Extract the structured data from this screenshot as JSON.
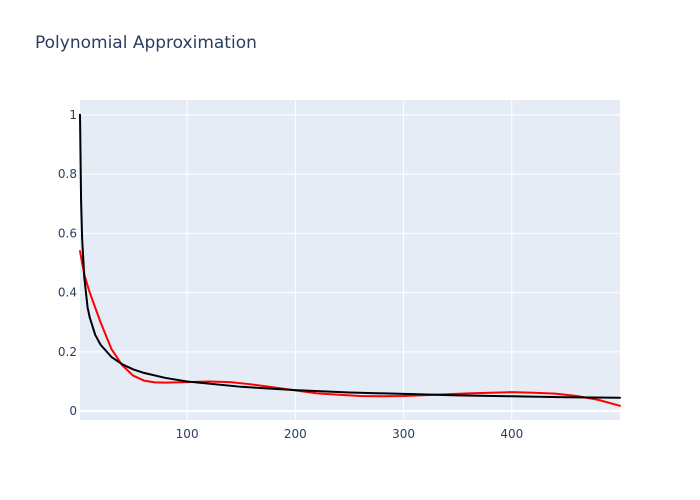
{
  "chart_data": {
    "type": "line",
    "title": "Polynomial Approximation",
    "xlabel": "",
    "ylabel": "",
    "xlim": [
      1,
      500
    ],
    "ylim": [
      -0.03,
      1.05
    ],
    "grid": true,
    "legend": "none",
    "x_ticks": [
      100,
      200,
      300,
      400
    ],
    "y_ticks": [
      0,
      0.2,
      0.4,
      0.6,
      0.8,
      1
    ],
    "series": [
      {
        "color": "#ff0000",
        "x": [
          1,
          5,
          10,
          20,
          30,
          40,
          50,
          60,
          70,
          80,
          100,
          120,
          140,
          160,
          180,
          200,
          220,
          240,
          260,
          280,
          300,
          320,
          340,
          360,
          380,
          400,
          420,
          440,
          460,
          480,
          500
        ],
        "y": [
          0.54,
          0.46,
          0.4,
          0.3,
          0.21,
          0.155,
          0.12,
          0.103,
          0.097,
          0.096,
          0.098,
          0.1,
          0.098,
          0.09,
          0.08,
          0.07,
          0.06,
          0.055,
          0.051,
          0.05,
          0.051,
          0.054,
          0.057,
          0.06,
          0.062,
          0.064,
          0.062,
          0.059,
          0.051,
          0.038,
          0.018
        ]
      },
      {
        "color": "#000000",
        "x": [
          1,
          2,
          3,
          5,
          8,
          10,
          15,
          20,
          30,
          40,
          50,
          60,
          80,
          100,
          150,
          200,
          250,
          300,
          350,
          400,
          450,
          500
        ],
        "y": [
          1.0,
          0.71,
          0.58,
          0.45,
          0.35,
          0.316,
          0.258,
          0.224,
          0.183,
          0.158,
          0.141,
          0.129,
          0.112,
          0.1,
          0.082,
          0.071,
          0.063,
          0.058,
          0.053,
          0.05,
          0.047,
          0.045
        ]
      }
    ]
  }
}
